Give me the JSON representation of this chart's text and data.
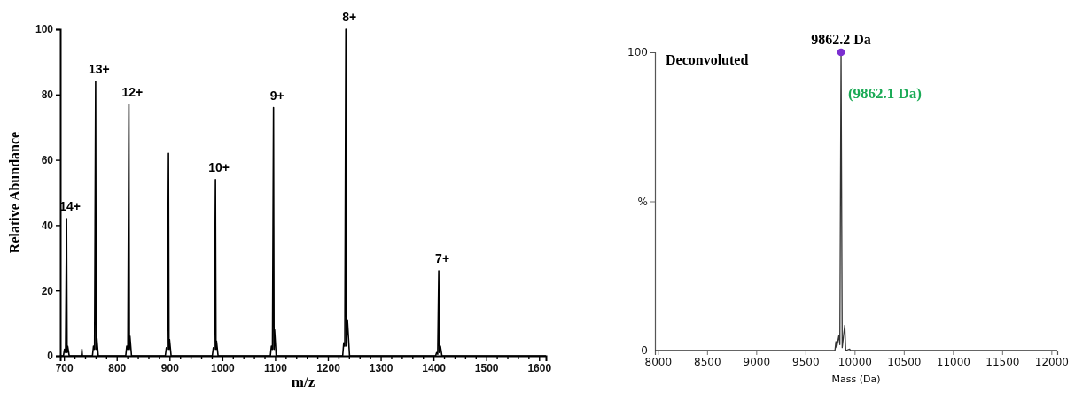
{
  "chart_data": [
    {
      "type": "line",
      "xlabel": "m/z",
      "ylabel": "Relative Abundance",
      "xlim": [
        693,
        1613
      ],
      "ylim": [
        0,
        100
      ],
      "xticks": [
        700,
        {
          "value": 720,
          "label": null
        },
        {
          "value": 740,
          "label": null
        },
        {
          "value": 760,
          "label": null
        },
        {
          "value": 780,
          "label": null
        },
        800,
        {
          "value": 820,
          "label": null
        },
        {
          "value": 840,
          "label": null
        },
        {
          "value": 860,
          "label": null
        },
        {
          "value": 880,
          "label": null
        },
        900,
        {
          "value": 920,
          "label": null
        },
        {
          "value": 940,
          "label": null
        },
        {
          "value": 960,
          "label": null
        },
        {
          "value": 980,
          "label": null
        },
        1000,
        {
          "value": 1020,
          "label": null
        },
        {
          "value": 1040,
          "label": null
        },
        {
          "value": 1060,
          "label": null
        },
        {
          "value": 1080,
          "label": null
        },
        1100,
        {
          "value": 1120,
          "label": null
        },
        {
          "value": 1140,
          "label": null
        },
        {
          "value": 1160,
          "label": null
        },
        {
          "value": 1180,
          "label": null
        },
        1200,
        {
          "value": 1220,
          "label": null
        },
        {
          "value": 1240,
          "label": null
        },
        {
          "value": 1260,
          "label": null
        },
        {
          "value": 1280,
          "label": null
        },
        1300,
        {
          "value": 1320,
          "label": null
        },
        {
          "value": 1340,
          "label": null
        },
        {
          "value": 1360,
          "label": null
        },
        {
          "value": 1380,
          "label": null
        },
        1400,
        {
          "value": 1420,
          "label": null
        },
        {
          "value": 1440,
          "label": null
        },
        {
          "value": 1460,
          "label": null
        },
        {
          "value": 1480,
          "label": null
        },
        1500,
        {
          "value": 1520,
          "label": null
        },
        {
          "value": 1540,
          "label": null
        },
        {
          "value": 1560,
          "label": null
        },
        {
          "value": 1580,
          "label": null
        },
        1600
      ],
      "yticks": [
        0,
        20,
        40,
        60,
        80,
        100
      ],
      "marker": "none",
      "series": [
        {
          "color": "#000000",
          "x": [
            693,
            699,
            701,
            703,
            705,
            706,
            707,
            710,
            733,
            734,
            735,
            754,
            756,
            758,
            760,
            761,
            762,
            765,
            817,
            819,
            821,
            823,
            824,
            825,
            828,
            892,
            894,
            896,
            898,
            899,
            900,
            903,
            981,
            983,
            985,
            987,
            988,
            989,
            992,
            1091,
            1093,
            1095,
            1097,
            1098,
            1099,
            1102,
            1228,
            1230,
            1232,
            1234,
            1235,
            1237,
            1241,
            1404,
            1406,
            1408,
            1410,
            1411,
            1413,
            1416,
            1613
          ],
          "values": [
            0,
            0,
            2,
            1,
            42,
            1,
            3,
            0,
            0,
            2,
            0,
            0,
            3,
            2,
            84,
            2,
            6,
            0,
            0,
            3,
            2,
            77,
            2,
            6,
            0,
            0,
            2.5,
            2,
            62,
            2,
            5,
            0,
            0,
            2.5,
            2,
            54,
            2,
            4.5,
            0,
            0,
            3,
            2,
            76,
            2,
            8,
            0,
            0,
            4,
            3,
            100,
            3,
            11,
            0,
            0,
            1,
            0.5,
            26,
            1,
            3,
            0,
            0
          ]
        }
      ],
      "annotations": [
        {
          "text": "14+",
          "x": 705,
          "y": 42
        },
        {
          "text": "13+",
          "x": 760,
          "y": 84
        },
        {
          "text": "12+",
          "x": 823,
          "y": 77
        },
        {
          "text": "10+",
          "x": 987,
          "y": 54
        },
        {
          "text": "9+",
          "x": 1097,
          "y": 76
        },
        {
          "text": "8+",
          "x": 1234,
          "y": 100
        },
        {
          "text": "7+",
          "x": 1410,
          "y": 26
        }
      ]
    },
    {
      "type": "line",
      "xlabel": "Mass (Da)",
      "xlim": [
        7970,
        12060
      ],
      "ylim": [
        0,
        100
      ],
      "xticks": [
        8000,
        8500,
        9000,
        9500,
        10000,
        10500,
        11000,
        11500,
        12000
      ],
      "yticks": [
        0,
        {
          "value": 50,
          "label": "%"
        },
        100
      ],
      "series": [
        {
          "color": "#333333",
          "marker": "none",
          "x": [
            7970,
            9800,
            9810,
            9818,
            9840,
            9850,
            9862.2,
            9874,
            9900,
            9910,
            9950,
            9955,
            12060
          ],
          "values": [
            0,
            0,
            3,
            1,
            5,
            2,
            100,
            1,
            8.5,
            0,
            0.5,
            0,
            0
          ]
        },
        {
          "type": "scatter",
          "color": "#7b2fd0",
          "marker": "circle",
          "x": [
            9862.2
          ],
          "values": [
            100
          ]
        }
      ],
      "annotations": [
        {
          "text": "9862.2 Da",
          "x": 9862.2,
          "y": 100
        },
        "Deconvoluted",
        "(9862.1 Da)"
      ]
    }
  ]
}
